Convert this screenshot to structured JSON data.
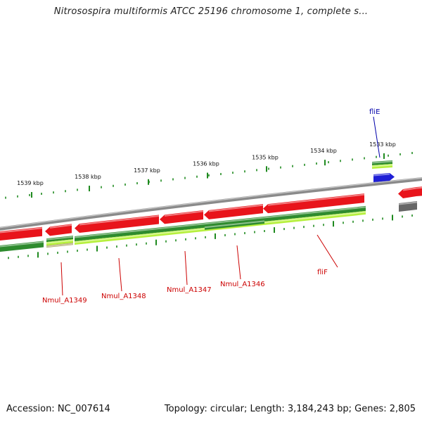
{
  "title": "Nitrosospira multiformis ATCC 25196 chromosome 1, complete s...",
  "footer": {
    "accession": "Accession: NC_007614",
    "stats": "Topology: circular; Length: 3,184,243 bp; Genes: 2,805"
  },
  "colors": {
    "reverse_gene": "#e8141b",
    "cds_dark": "#2e8b2e",
    "cds_light": "#b6f03c",
    "forward_gene": "#1f1fd6",
    "pseudo": "#666666",
    "backbone": "#8a8a8a",
    "tick": "#1f8a1f",
    "label_red": "#cc0000",
    "label_blue": "#0000aa"
  },
  "ticks": [
    {
      "label": "1539 kbp"
    },
    {
      "label": "1538 kbp"
    },
    {
      "label": "1537 kbp"
    },
    {
      "label": "1536 kbp"
    },
    {
      "label": "1535 kbp"
    },
    {
      "label": "1534 kbp"
    },
    {
      "label": "1533 kbp"
    }
  ],
  "genes": [
    {
      "name": "Nmul_A1349",
      "strand": "-"
    },
    {
      "name": "Nmul_A1348",
      "strand": "-"
    },
    {
      "name": "Nmul_A1347",
      "strand": "-"
    },
    {
      "name": "Nmul_A1346",
      "strand": "-"
    },
    {
      "name": "fliF",
      "strand": "-"
    },
    {
      "name": "fliE",
      "strand": "+"
    }
  ]
}
